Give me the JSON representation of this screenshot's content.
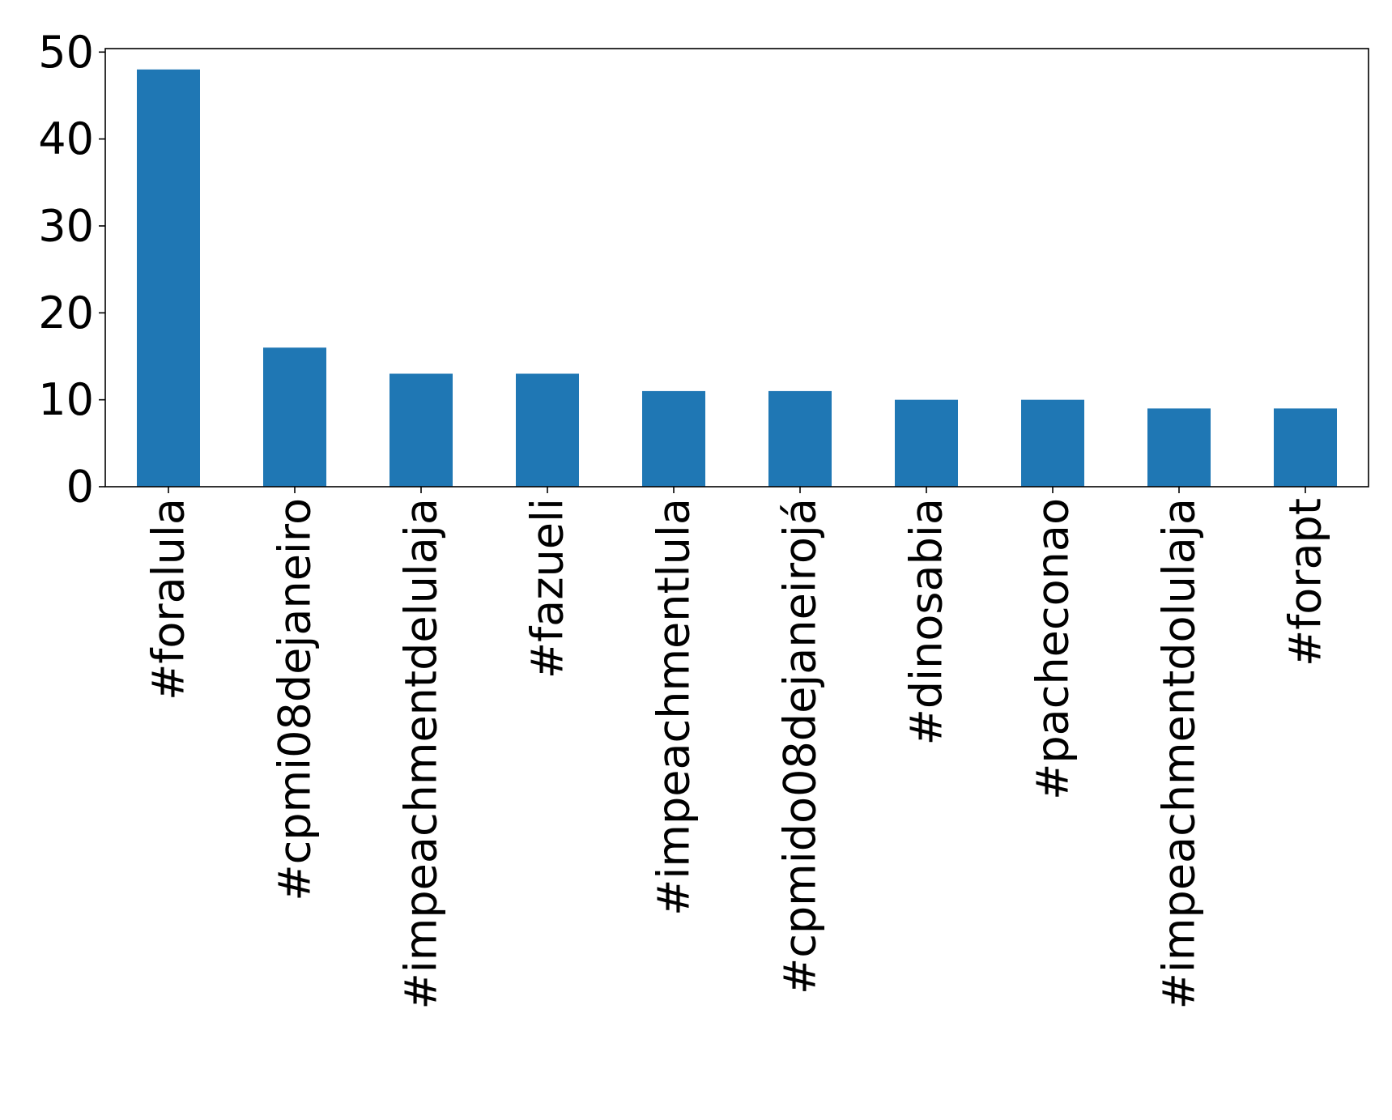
{
  "chart_data": {
    "type": "bar",
    "title": "",
    "xlabel": "",
    "ylabel": "",
    "categories": [
      "#foralula",
      "#cpmi08dejaneiro",
      "#impeachmentdelulaja",
      "#fazueli",
      "#impeachmentlula",
      "#cpmido08dejaneirojá",
      "#dinosabia",
      "#pacheconao",
      "#impeachmentdolulaja",
      "#forapt"
    ],
    "values": [
      48,
      16,
      13,
      13,
      11,
      11,
      10,
      10,
      9,
      9
    ],
    "ylim": [
      0,
      50.4
    ],
    "yticks": [
      0,
      10,
      20,
      30,
      40,
      50
    ],
    "grid": false,
    "legend": "none",
    "colors": {
      "bar": "#1f77b4",
      "axis": "#000000",
      "background": "#ffffff"
    }
  }
}
